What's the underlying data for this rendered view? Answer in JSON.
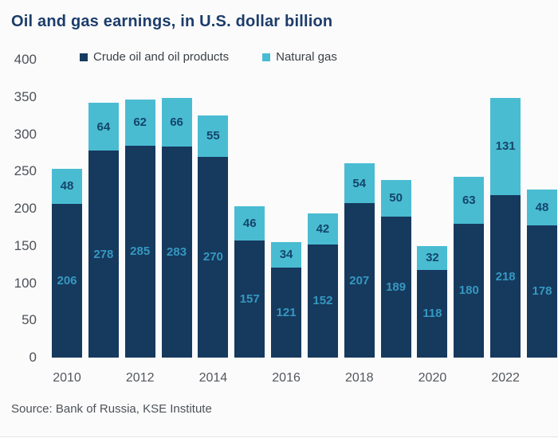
{
  "title": "Oil and gas earnings, in U.S. dollar billion",
  "source": "Source: Bank of Russia, KSE Institute",
  "colors": {
    "crude_bar": "#16395e",
    "gas_bar": "#49bcd2",
    "crude_label": "#3598c0",
    "gas_label": "#15456b",
    "title_text": "#1c3d6b",
    "axis_text": "#4d5157"
  },
  "legend": {
    "items": [
      {
        "label": "Crude oil and oil products",
        "color": "#16395e"
      },
      {
        "label": "Natural gas",
        "color": "#49bcd2"
      }
    ]
  },
  "chart_data": {
    "type": "bar",
    "stacked": true,
    "title": "Oil and gas earnings, in U.S. dollar billion",
    "xlabel": "",
    "ylabel": "",
    "ylim": [
      0,
      400
    ],
    "ytick_step": 50,
    "grid": false,
    "legend_position": "top",
    "categories": [
      2010,
      2011,
      2012,
      2013,
      2014,
      2015,
      2016,
      2017,
      2018,
      2019,
      2020,
      2021,
      2022,
      2023
    ],
    "x_tick_labels": [
      "2010",
      "",
      "2012",
      "",
      "2014",
      "",
      "2016",
      "",
      "2018",
      "",
      "2020",
      "",
      "2022",
      ""
    ],
    "series": [
      {
        "name": "Crude oil and oil products",
        "color": "#16395e",
        "label_color": "#3598c0",
        "values": [
          206,
          278,
          285,
          283,
          270,
          157,
          121,
          152,
          207,
          189,
          118,
          180,
          218,
          178
        ]
      },
      {
        "name": "Natural gas",
        "color": "#49bcd2",
        "label_color": "#15456b",
        "values": [
          48,
          64,
          62,
          66,
          55,
          46,
          34,
          42,
          54,
          50,
          32,
          63,
          131,
          48
        ]
      }
    ]
  }
}
